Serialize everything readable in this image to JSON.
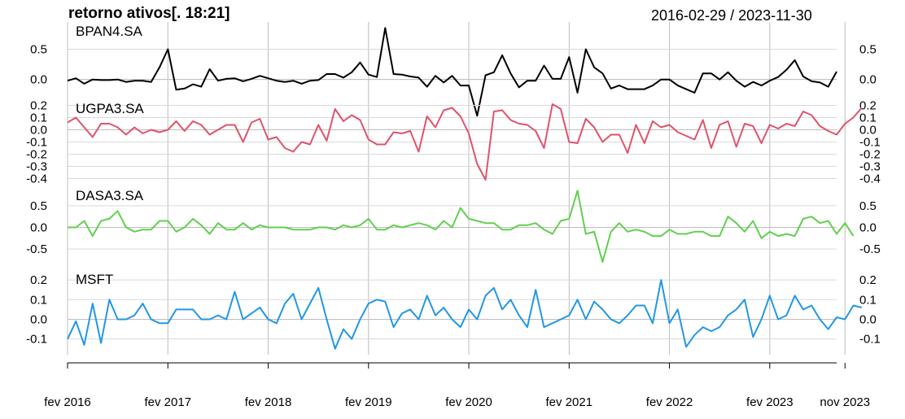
{
  "title": "retorno ativos[. 18:21]",
  "date_range": "2016-02-29 / 2023-11-30",
  "chart_data": {
    "type": "line",
    "x_labels": [
      "fev 2016",
      "fev 2017",
      "fev 2018",
      "fev 2019",
      "fev 2020",
      "fev 2021",
      "fev 2022",
      "fev 2023",
      "nov 2023"
    ],
    "x_label_months": [
      0,
      12,
      24,
      36,
      48,
      60,
      72,
      84,
      93
    ],
    "grid": true,
    "panels": [
      {
        "name": "BPAN4.SA",
        "color": "#000000",
        "ylim": [
          -0.3,
          0.95
        ],
        "yticks": [
          0.0,
          0.5
        ],
        "ytick_labels": [
          "0.0",
          "0.5"
        ],
        "values": [
          -0.02,
          0.02,
          -0.07,
          0.0,
          -0.01,
          -0.01,
          0.0,
          -0.04,
          -0.02,
          -0.02,
          -0.04,
          0.2,
          0.5,
          -0.17,
          -0.15,
          -0.08,
          -0.12,
          0.17,
          -0.02,
          0.01,
          0.02,
          -0.03,
          0.01,
          0.06,
          0.02,
          -0.02,
          -0.04,
          -0.02,
          -0.07,
          -0.02,
          -0.01,
          0.09,
          0.09,
          0.03,
          0.12,
          0.28,
          0.08,
          0.04,
          0.85,
          0.09,
          0.08,
          0.05,
          0.03,
          -0.12,
          0.06,
          -0.05,
          0.06,
          -0.1,
          -0.1,
          -0.6,
          0.07,
          0.12,
          0.4,
          0.1,
          -0.13,
          -0.02,
          -0.02,
          0.23,
          0.01,
          0.01,
          0.37,
          -0.22,
          0.5,
          0.2,
          0.1,
          -0.15,
          -0.1,
          -0.16,
          -0.16,
          -0.16,
          -0.1,
          0.0,
          0.0,
          -0.1,
          -0.16,
          -0.22,
          0.1,
          0.1,
          0.0,
          0.12,
          -0.02,
          -0.12,
          -0.04,
          -0.1,
          -0.02,
          0.04,
          0.16,
          0.32,
          0.05,
          -0.03,
          -0.05,
          -0.12,
          0.13
        ]
      },
      {
        "name": "UGPA3.SA",
        "color": "#DF536B",
        "ylim": [
          -0.45,
          0.25
        ],
        "yticks": [
          -0.4,
          -0.3,
          -0.2,
          -0.1,
          0.0,
          0.1,
          0.2
        ],
        "ytick_labels": [
          "-0.4",
          "-0.3",
          "-0.2",
          "-0.1",
          "0.0",
          "0.1",
          "0.2"
        ],
        "values": [
          0.06,
          0.1,
          0.02,
          -0.06,
          0.05,
          0.05,
          0.02,
          -0.04,
          0.02,
          -0.03,
          0.0,
          -0.02,
          0.0,
          0.07,
          -0.01,
          0.07,
          0.04,
          -0.04,
          0.0,
          0.04,
          0.04,
          -0.1,
          0.06,
          0.09,
          -0.08,
          -0.06,
          -0.15,
          -0.18,
          -0.1,
          -0.12,
          0.04,
          -0.09,
          0.17,
          0.07,
          0.12,
          0.08,
          -0.08,
          -0.12,
          -0.12,
          -0.02,
          -0.03,
          -0.01,
          -0.18,
          0.11,
          0.02,
          0.16,
          0.18,
          0.11,
          -0.03,
          -0.28,
          -0.41,
          0.15,
          0.16,
          0.08,
          0.05,
          0.04,
          -0.01,
          -0.15,
          0.21,
          0.17,
          -0.1,
          -0.11,
          0.09,
          0.02,
          -0.1,
          -0.04,
          -0.04,
          -0.19,
          0.04,
          -0.11,
          0.07,
          0.02,
          0.04,
          -0.02,
          -0.05,
          -0.08,
          0.08,
          -0.15,
          0.04,
          0.07,
          -0.14,
          0.05,
          0.03,
          -0.11,
          0.04,
          0.01,
          0.05,
          0.03,
          0.15,
          0.12,
          0.03,
          -0.01,
          -0.04,
          0.05,
          0.1,
          0.18
        ]
      },
      {
        "name": "DASA3.SA",
        "color": "#61D04F",
        "ylim": [
          -0.95,
          0.95
        ],
        "yticks": [
          -0.5,
          0.0,
          0.5
        ],
        "ytick_labels": [
          "-0.5",
          "0.0",
          "0.5"
        ],
        "values": [
          0.0,
          0.0,
          0.15,
          -0.2,
          0.15,
          0.2,
          0.38,
          0.0,
          -0.1,
          -0.05,
          -0.05,
          0.15,
          0.15,
          -0.1,
          0.0,
          0.2,
          0.05,
          -0.15,
          0.1,
          -0.05,
          -0.05,
          0.1,
          -0.05,
          0.05,
          0.0,
          0.0,
          0.0,
          -0.05,
          -0.05,
          -0.05,
          0.0,
          0.0,
          -0.05,
          0.05,
          0.0,
          0.05,
          0.2,
          -0.05,
          -0.05,
          0.05,
          0.0,
          0.05,
          0.1,
          0.05,
          -0.05,
          0.15,
          0.0,
          0.45,
          0.2,
          0.15,
          0.1,
          0.1,
          -0.05,
          -0.05,
          0.05,
          0.05,
          0.1,
          -0.05,
          -0.15,
          0.15,
          0.2,
          0.85,
          -0.15,
          -0.1,
          -0.8,
          -0.1,
          0.1,
          -0.1,
          -0.05,
          -0.1,
          -0.2,
          -0.2,
          -0.05,
          -0.15,
          -0.15,
          -0.1,
          -0.1,
          -0.2,
          -0.2,
          0.25,
          0.1,
          -0.1,
          0.15,
          -0.25,
          -0.1,
          -0.2,
          -0.15,
          -0.2,
          0.2,
          0.25,
          0.1,
          0.15,
          -0.15,
          0.1,
          -0.2
        ]
      },
      {
        "name": "MSFT",
        "color": "#2297E6",
        "ylim": [
          -0.18,
          0.25
        ],
        "yticks": [
          -0.1,
          0.0,
          0.1,
          0.2
        ],
        "ytick_labels": [
          "-0.1",
          "0.0",
          "0.1",
          "0.2"
        ],
        "values": [
          -0.1,
          -0.01,
          -0.13,
          0.08,
          -0.12,
          0.1,
          0.0,
          0.0,
          0.02,
          0.08,
          0.0,
          -0.02,
          -0.02,
          0.05,
          0.05,
          0.05,
          0.0,
          0.0,
          0.02,
          0.0,
          0.14,
          0.0,
          0.03,
          0.06,
          0.0,
          -0.02,
          0.08,
          0.13,
          0.0,
          0.08,
          0.16,
          0.0,
          -0.15,
          -0.05,
          -0.1,
          0.0,
          0.08,
          0.1,
          0.09,
          -0.04,
          0.03,
          0.05,
          0.0,
          0.12,
          0.02,
          0.06,
          0.0,
          -0.04,
          0.05,
          0.0,
          0.12,
          0.16,
          0.05,
          0.1,
          0.02,
          -0.04,
          0.15,
          -0.04,
          -0.02,
          0.0,
          0.02,
          0.1,
          0.0,
          0.09,
          0.05,
          0.0,
          -0.02,
          0.02,
          0.07,
          0.07,
          -0.02,
          0.2,
          -0.02,
          0.05,
          -0.14,
          -0.08,
          -0.04,
          -0.06,
          -0.04,
          0.02,
          0.05,
          0.1,
          -0.09,
          0.0,
          0.12,
          0.0,
          0.02,
          0.12,
          0.05,
          0.07,
          0.0,
          -0.05,
          0.01,
          0.0,
          0.07,
          0.06
        ]
      }
    ]
  }
}
